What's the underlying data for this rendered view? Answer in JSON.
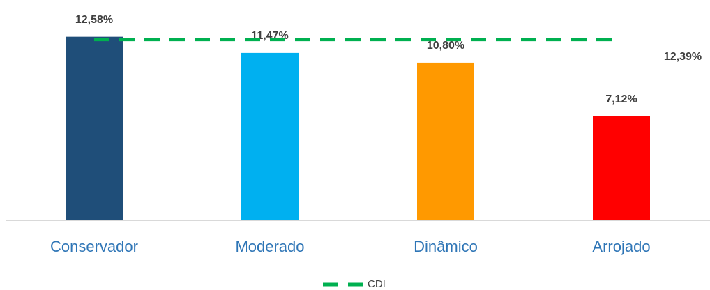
{
  "chart_data": {
    "type": "bar",
    "categories": [
      "Conservador",
      "Moderado",
      "Dinâmico",
      "Arrojado"
    ],
    "series": [
      {
        "type": "bar",
        "values": [
          12.58,
          11.47,
          10.8,
          7.12
        ],
        "value_labels": [
          "12,58%",
          "11,47%",
          "10,80%",
          "7,12%"
        ],
        "colors": [
          "#1f4e79",
          "#00b0f0",
          "#ff9900",
          "#ff0000"
        ]
      },
      {
        "type": "line",
        "name": "CDI",
        "color": "#00b050",
        "dashed": true,
        "values": [
          12.39,
          12.39,
          12.39,
          12.39
        ],
        "value_labels": [
          null,
          null,
          null,
          "12,39%"
        ]
      }
    ],
    "ylim": [
      0,
      15
    ],
    "legend": "bottom"
  }
}
